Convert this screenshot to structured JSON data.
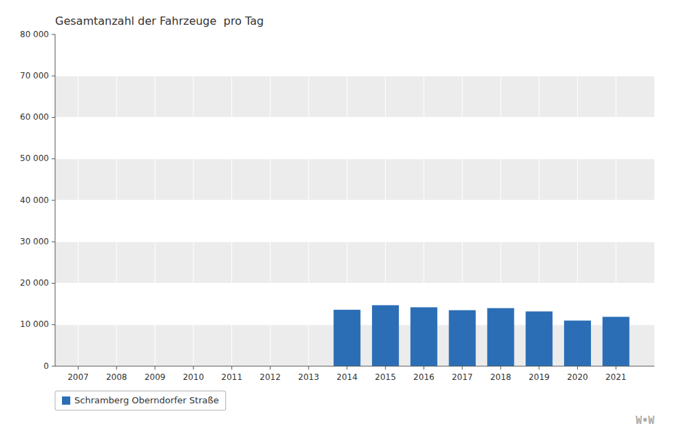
{
  "chart_data": {
    "type": "bar",
    "title": "Gesamtanzahl der Fahrzeuge  pro Tag",
    "x": [
      2007,
      2008,
      2009,
      2010,
      2011,
      2012,
      2013,
      2014,
      2015,
      2016,
      2017,
      2018,
      2019,
      2020,
      2021
    ],
    "series": [
      {
        "name": "Schramberg Oberndorfer Straße",
        "color": "#2B6EB5",
        "values": [
          0,
          0,
          0,
          0,
          0,
          0,
          0,
          13600,
          14700,
          14200,
          13500,
          14000,
          13200,
          11000,
          11900
        ]
      }
    ],
    "xlim": [
      2006.4,
      2022.0
    ],
    "xticks": [
      2007,
      2008,
      2009,
      2010,
      2011,
      2012,
      2013,
      2014,
      2015,
      2016,
      2017,
      2018,
      2019,
      2020,
      2021
    ],
    "ylim": [
      0,
      80000
    ],
    "yticks": [
      0,
      {
        "value": 10000,
        "label": "10 000"
      },
      {
        "value": 20000,
        "label": "20 000"
      },
      {
        "value": 30000,
        "label": "30 000"
      },
      {
        "value": 40000,
        "label": "40 000"
      },
      {
        "value": 50000,
        "label": "50 000"
      },
      {
        "value": 60000,
        "label": "60 000"
      },
      {
        "value": 70000,
        "label": "70 000"
      },
      {
        "value": 80000,
        "label": "80 000"
      }
    ],
    "grid": true,
    "legend": "bottom",
    "annotations": [
      "W•W"
    ]
  }
}
